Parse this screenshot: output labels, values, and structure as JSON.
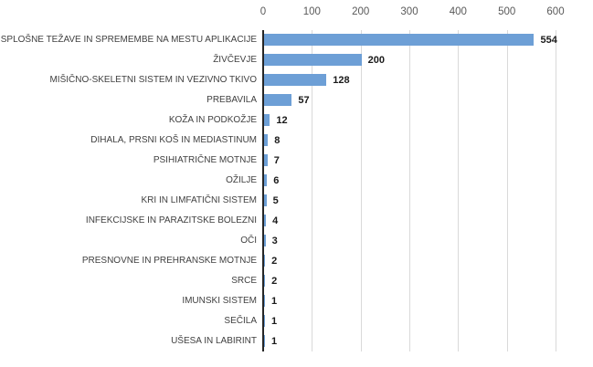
{
  "chart_data": {
    "type": "bar",
    "orientation": "horizontal",
    "title": "",
    "xlabel": "",
    "ylabel": "",
    "categories": [
      "SPLOŠNE TEŽAVE IN SPREMEMBE NA MESTU APLIKACIJE",
      "ŽIVČEVJE",
      "MIŠIČNO-SKELETNI SISTEM IN VEZIVNO TKIVO",
      "PREBAVILA",
      "KOŽA IN PODKOŽJE",
      "DIHALA, PRSNI KOŠ IN MEDIASTINUM",
      "PSIHIATRIČNE MOTNJE",
      "OŽILJE",
      "KRI IN LIMFATIČNI SISTEM",
      "INFEKCIJSKE IN PARAZITSKE BOLEZNI",
      "OČI",
      "PRESNOVNE IN PREHRANSKE MOTNJE",
      "SRCE",
      "IMUNSKI SISTEM",
      "SEČILA",
      "UŠESA IN LABIRINT"
    ],
    "values": [
      554,
      200,
      128,
      57,
      12,
      8,
      7,
      6,
      5,
      4,
      3,
      2,
      2,
      1,
      1,
      1
    ],
    "xlim": [
      0,
      600
    ],
    "xticks": [
      0,
      100,
      200,
      300,
      400,
      500,
      600
    ],
    "grid": "vertical-gridlines-on",
    "legend": "none",
    "colors": {
      "bar": "#6d9fd6",
      "axis_line": "#262626",
      "gridline": "#d9d9d9",
      "category_label": "#404040",
      "value_label": "#1a1a1a",
      "tick_label": "#595959",
      "background": "#ffffff"
    }
  }
}
